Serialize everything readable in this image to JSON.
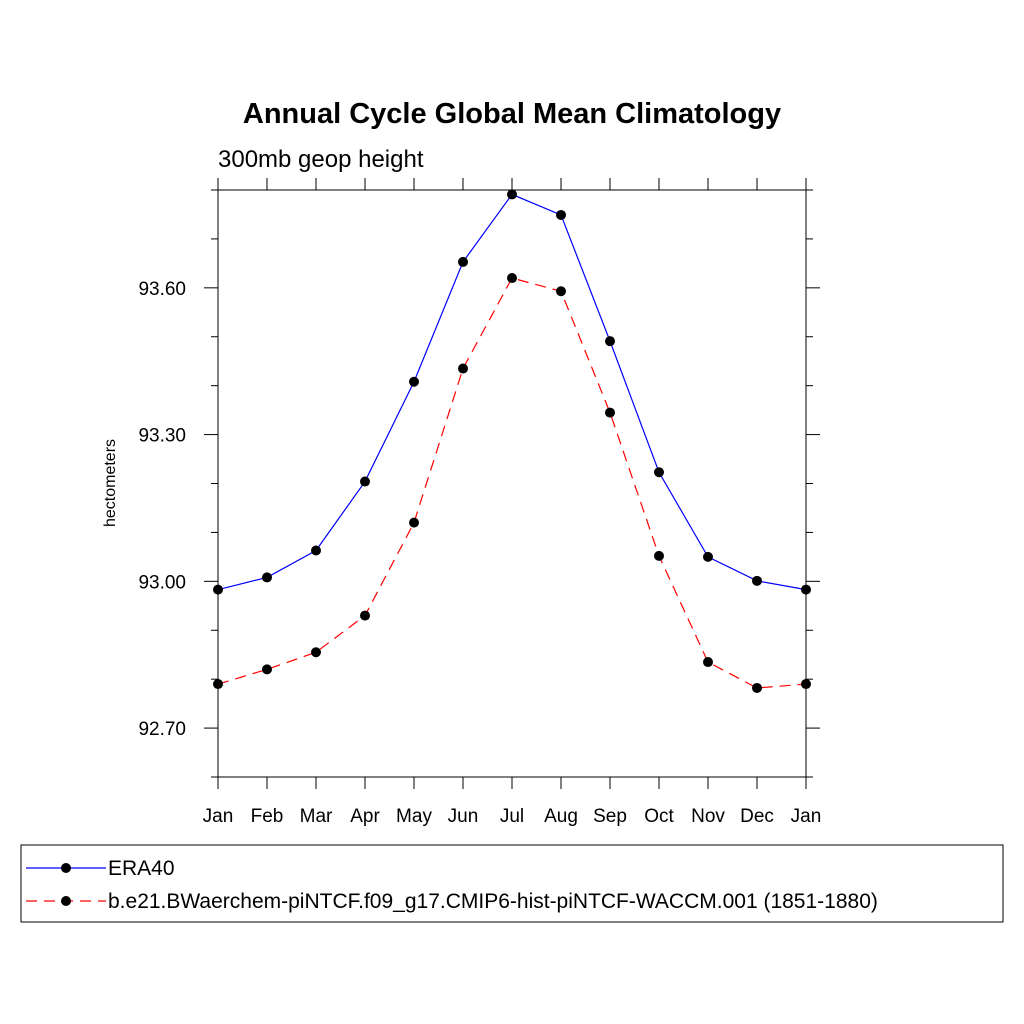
{
  "chart_data": {
    "type": "line",
    "title": "Annual Cycle Global Mean Climatology",
    "subtitle": "300mb geop height",
    "ylabel": "hectometers",
    "xlabel": "",
    "categories": [
      "Jan",
      "Feb",
      "Mar",
      "Apr",
      "May",
      "Jun",
      "Jul",
      "Aug",
      "Sep",
      "Oct",
      "Nov",
      "Dec",
      "Jan"
    ],
    "ylim": [
      92.6,
      93.8
    ],
    "yticks": [
      92.7,
      93.0,
      93.3,
      93.6
    ],
    "ytick_labels": [
      "92.70",
      "93.00",
      "93.30",
      "93.60"
    ],
    "grid": false,
    "legend_position": "bottom",
    "series": [
      {
        "name": "ERA40",
        "color": "#0000ff",
        "dash": "solid",
        "marker": "filled-circle",
        "values": [
          92.983,
          93.008,
          93.063,
          93.204,
          93.408,
          93.653,
          93.791,
          93.749,
          93.491,
          93.223,
          93.05,
          93.001,
          92.983
        ]
      },
      {
        "name": "b.e21.BWaerchem-piNTCF.f09_g17.CMIP6-hist-piNTCF-WACCM.001 (1851-1880)",
        "color": "#ff0000",
        "dash": "dashed",
        "marker": "filled-circle",
        "values": [
          92.79,
          92.82,
          92.855,
          92.93,
          93.12,
          93.435,
          93.62,
          93.593,
          93.345,
          93.052,
          92.835,
          92.782,
          92.79
        ]
      }
    ]
  }
}
